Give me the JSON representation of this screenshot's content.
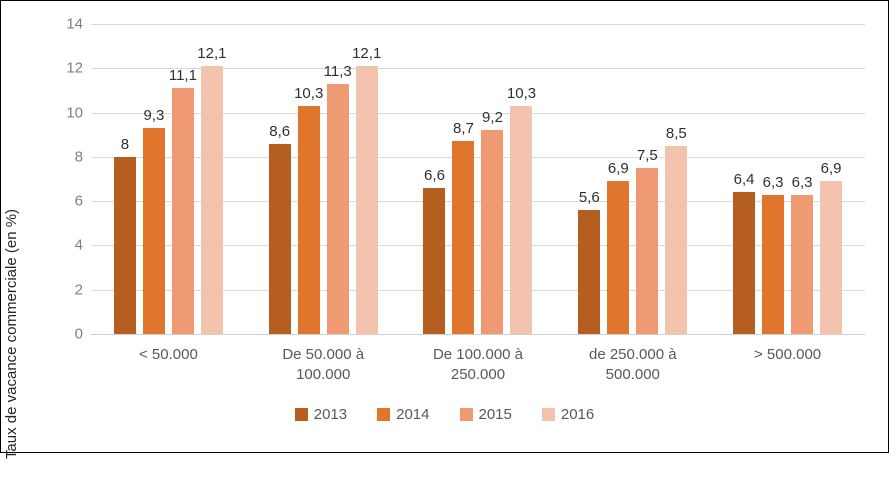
{
  "chart_data": {
    "type": "bar",
    "title": "",
    "ylabel": "Taux de vacance commerciale (en %)",
    "xlabel": "",
    "ylim": [
      0,
      14
    ],
    "yticks": [
      0,
      2,
      4,
      6,
      8,
      10,
      12,
      14
    ],
    "grid": true,
    "legend_position": "bottom",
    "decimal_separator": ",",
    "categories": [
      "< 50.000",
      "De 50.000 à 100.000",
      "De 100.000 à 250.000",
      "de 250.000 à 500.000",
      "> 500.000"
    ],
    "series": [
      {
        "name": "2013",
        "color": "#b65d20",
        "values": [
          8,
          8.6,
          6.6,
          5.6,
          6.4
        ],
        "labels": [
          "8",
          "8,6",
          "6,6",
          "5,6",
          "6,4"
        ]
      },
      {
        "name": "2014",
        "color": "#df762b",
        "values": [
          9.3,
          10.3,
          8.7,
          6.9,
          6.3
        ],
        "labels": [
          "9,3",
          "10,3",
          "8,7",
          "6,9",
          "6,3"
        ]
      },
      {
        "name": "2015",
        "color": "#ef9a72",
        "values": [
          11.1,
          11.3,
          9.2,
          7.5,
          6.3
        ],
        "labels": [
          "11,1",
          "11,3",
          "9,2",
          "7,5",
          "6,3"
        ]
      },
      {
        "name": "2016",
        "color": "#f4c3ae",
        "values": [
          12.1,
          12.1,
          10.3,
          8.5,
          6.9
        ],
        "labels": [
          "12,1",
          "12,1",
          "10,3",
          "8,5",
          "6,9"
        ]
      }
    ]
  },
  "colors": {
    "gridline": "#d9d9d9",
    "axis_line": "#d0d0d0",
    "tick_text": "#7f7f7f",
    "category_text": "#595959",
    "data_label_text": "#303030",
    "axis_title_text": "#262626"
  }
}
